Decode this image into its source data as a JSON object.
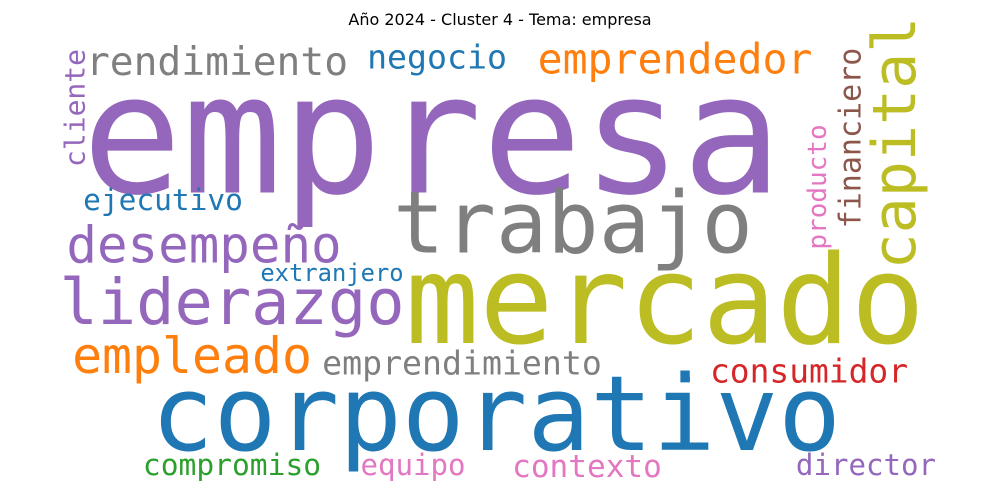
{
  "title": "Año 2024 - Cluster 4 - Tema: empresa",
  "chart_data": {
    "type": "wordcloud",
    "title": "Año 2024 - Cluster 4 - Tema: empresa",
    "words": [
      {
        "text": "empresa",
        "weight": 100,
        "color": "#9467bd",
        "orientation": "horizontal"
      },
      {
        "text": "mercado",
        "weight": 72,
        "color": "#bcbd22",
        "orientation": "horizontal"
      },
      {
        "text": "corporativo",
        "weight": 65,
        "color": "#1f77b4",
        "orientation": "horizontal"
      },
      {
        "text": "trabajo",
        "weight": 48,
        "color": "#7f7f7f",
        "orientation": "horizontal"
      },
      {
        "text": "liderazgo",
        "weight": 38,
        "color": "#9467bd",
        "orientation": "horizontal"
      },
      {
        "text": "capital",
        "weight": 33,
        "color": "#bcbd22",
        "orientation": "vertical"
      },
      {
        "text": "desempeño",
        "weight": 29,
        "color": "#9467bd",
        "orientation": "horizontal"
      },
      {
        "text": "empleado",
        "weight": 29,
        "color": "#ff7f0e",
        "orientation": "horizontal"
      },
      {
        "text": "rendimiento",
        "weight": 28,
        "color": "#7f7f7f",
        "orientation": "horizontal"
      },
      {
        "text": "emprendedor",
        "weight": 28,
        "color": "#ff7f0e",
        "orientation": "horizontal"
      },
      {
        "text": "financiero",
        "weight": 23,
        "color": "#8c564b",
        "orientation": "vertical"
      },
      {
        "text": "consumidor",
        "weight": 22,
        "color": "#d62728",
        "orientation": "horizontal"
      },
      {
        "text": "negocio",
        "weight": 21,
        "color": "#1f77b4",
        "orientation": "horizontal"
      },
      {
        "text": "emprendimiento",
        "weight": 21,
        "color": "#7f7f7f",
        "orientation": "horizontal"
      },
      {
        "text": "producto",
        "weight": 20,
        "color": "#e377c2",
        "orientation": "vertical"
      },
      {
        "text": "cliente",
        "weight": 19,
        "color": "#9467bd",
        "orientation": "vertical"
      },
      {
        "text": "contexto",
        "weight": 19,
        "color": "#e377c2",
        "orientation": "horizontal"
      },
      {
        "text": "ejecutivo",
        "weight": 18,
        "color": "#1f77b4",
        "orientation": "horizontal"
      },
      {
        "text": "compromiso",
        "weight": 18,
        "color": "#2ca02c",
        "orientation": "horizontal"
      },
      {
        "text": "director",
        "weight": 18,
        "color": "#9467bd",
        "orientation": "horizontal"
      },
      {
        "text": "equipo",
        "weight": 17,
        "color": "#e377c2",
        "orientation": "horizontal"
      },
      {
        "text": "extranjero",
        "weight": 15,
        "color": "#1f77b4",
        "orientation": "horizontal"
      },
      {
        "text": ".",
        "weight": 24,
        "color": "#1f77b4",
        "orientation": "horizontal"
      }
    ]
  }
}
